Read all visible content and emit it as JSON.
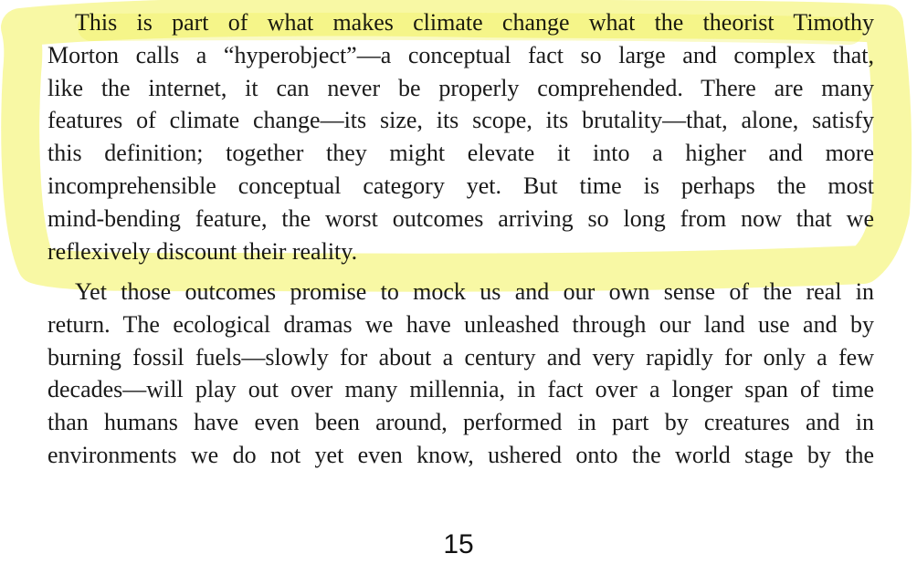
{
  "document": {
    "paragraph_1": {
      "lines": [
        "This is part of what makes climate change what the theorist Timothy",
        "Morton calls a “hyperobject”—a conceptual fact so large and complex that,",
        "like the internet, it can never be properly comprehended. There are many",
        "features of climate change—its size, its scope, its brutality—that, alone, satisfy",
        "this definition; together they might elevate it into a higher and more",
        "incomprehensible conceptual category yet. But time is perhaps the most",
        "mind-bending feature, the worst outcomes arriving so long from now that we",
        "reflexively discount their reality."
      ]
    },
    "paragraph_2": {
      "lines": [
        "Yet those outcomes promise to mock us and our own sense of the real in",
        "return. The ecological dramas we have unleashed through our land use and by",
        "burning fossil fuels—slowly for about a century and very rapidly for only a few",
        "decades—will play out over many millennia, in fact over a longer span of time",
        "than humans have even been around, performed in part by creatures and in",
        "environments we do not yet even know, ushered onto the world stage by the"
      ]
    },
    "page_number": "15"
  },
  "annotation": {
    "highlight_color": "#f2f25a"
  }
}
